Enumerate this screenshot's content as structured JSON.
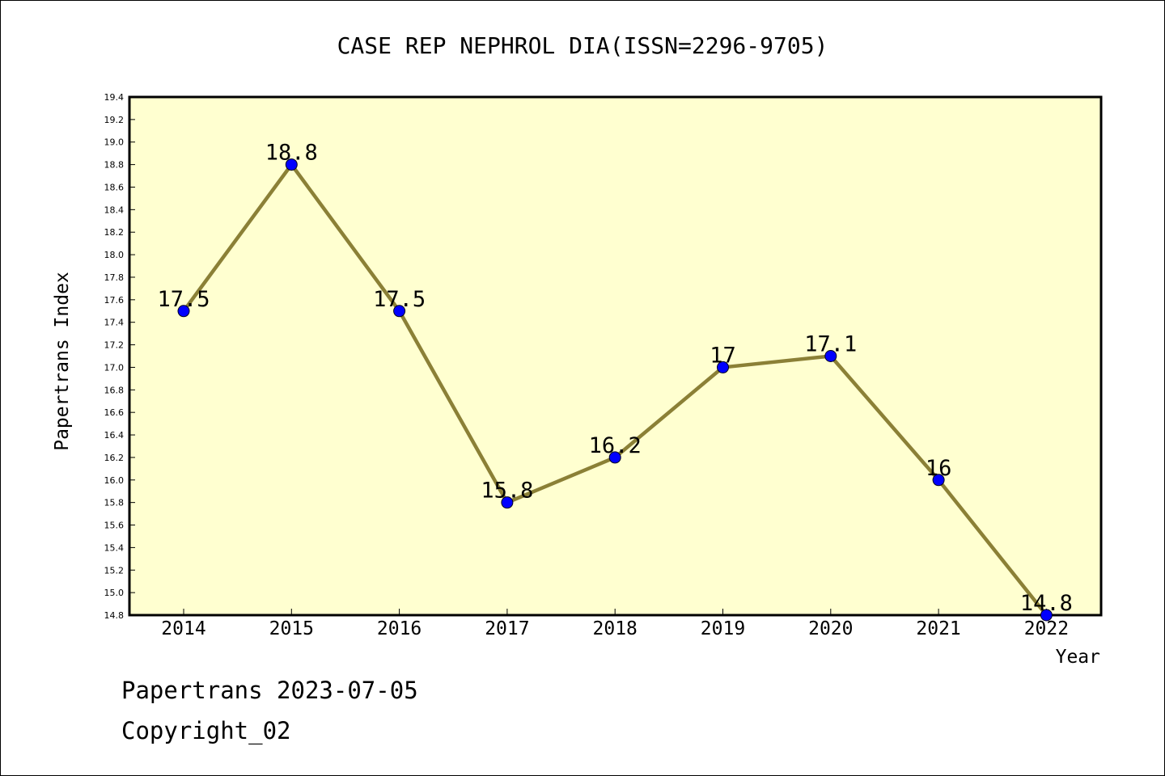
{
  "chart_data": {
    "type": "line",
    "title": "CASE REP NEPHROL DIA(ISSN=2296-9705)",
    "xlabel": "Year",
    "ylabel": "Papertrans Index",
    "categories": [
      "2014",
      "2015",
      "2016",
      "2017",
      "2018",
      "2019",
      "2020",
      "2021",
      "2022"
    ],
    "series": [
      {
        "values": [
          17.5,
          18.8,
          17.5,
          15.8,
          16.2,
          17.0,
          17.1,
          16.0,
          14.8
        ]
      }
    ],
    "data_labels": [
      "17.5",
      "18.8",
      "17.5",
      "15.8",
      "16.2",
      "17",
      "17.1",
      "16",
      "14.8"
    ],
    "ylim": [
      14.8,
      19.4
    ],
    "yticks": [
      "14.8",
      "15.0",
      "15.2",
      "15.4",
      "15.6",
      "15.8",
      "16.0",
      "16.2",
      "16.4",
      "16.6",
      "16.8",
      "17.0",
      "17.2",
      "17.4",
      "17.6",
      "17.8",
      "18.0",
      "18.2",
      "18.4",
      "18.6",
      "18.8",
      "19.0",
      "19.2",
      "19.4"
    ],
    "grid": false,
    "colors": {
      "plot_background": "#ffffd0",
      "line": "#8b8036",
      "marker": "#0000ff"
    }
  },
  "footer": {
    "date_text": "Papertrans 2023-07-05",
    "copyright_text": "Copyright_02"
  }
}
